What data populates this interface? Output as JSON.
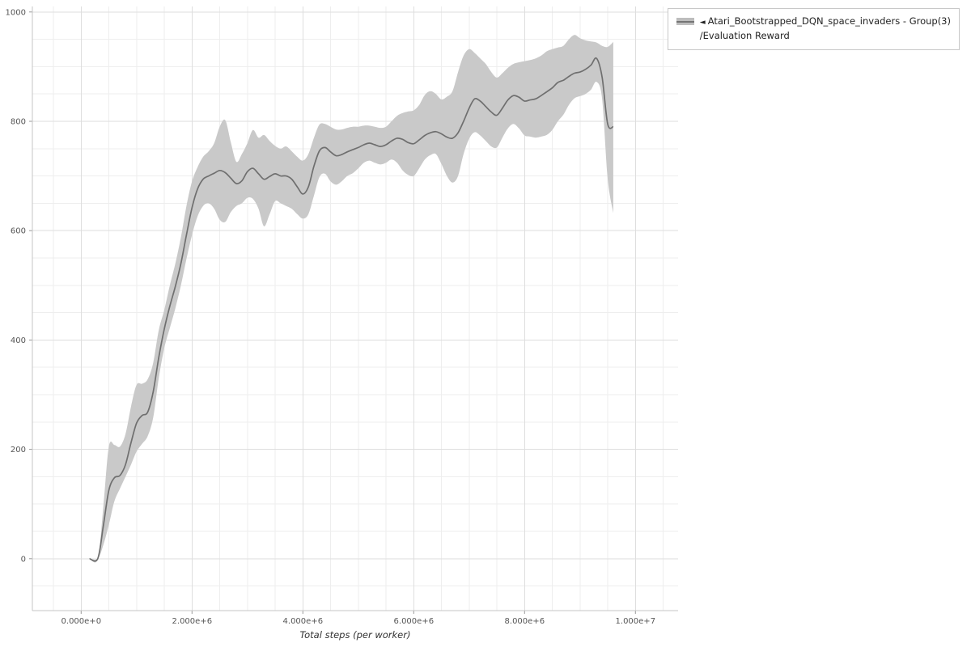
{
  "legend": {
    "collapse_icon": "◄",
    "line1": "Atari_Bootstrapped_DQN_space_invaders - Group(3)",
    "line2": "/Evaluation Reward"
  },
  "chart_data": {
    "type": "line",
    "title": "",
    "xlabel": "Total steps (per worker)",
    "ylabel": "",
    "x_unit": 1000000,
    "x_ticks": [
      {
        "value": 0,
        "label": "0.000e+0"
      },
      {
        "value": 2,
        "label": "2.000e+6"
      },
      {
        "value": 4,
        "label": "4.000e+6"
      },
      {
        "value": 6,
        "label": "6.000e+6"
      },
      {
        "value": 8,
        "label": "8.000e+6"
      },
      {
        "value": 10,
        "label": "1.000e+7"
      }
    ],
    "y_ticks": [
      {
        "value": 0,
        "label": "0"
      },
      {
        "value": 200,
        "label": "200"
      },
      {
        "value": 400,
        "label": "400"
      },
      {
        "value": 600,
        "label": "600"
      },
      {
        "value": 800,
        "label": "800"
      },
      {
        "value": 1000,
        "label": "1000"
      }
    ],
    "xlim": [
      -0.88,
      10.77
    ],
    "ylim": [
      -95,
      1010
    ],
    "x_minor_step": 0.5,
    "y_minor_step": 50,
    "grid": true,
    "legend_position": "top-right",
    "colors": {
      "line": "#6f6f6f",
      "band": "#c9c9c9",
      "grid_major": "#dedede",
      "grid_minor": "#eeeeee",
      "axis": "#c6c6c6",
      "tick_mark": "#999999"
    },
    "series": [
      {
        "name": "Atari_Bootstrapped_DQN_space_invaders - Group(3)/Evaluation Reward",
        "x": [
          0.15,
          0.3,
          0.4,
          0.5,
          0.6,
          0.7,
          0.8,
          0.9,
          1.0,
          1.1,
          1.2,
          1.3,
          1.4,
          1.5,
          1.6,
          1.7,
          1.8,
          1.9,
          2.0,
          2.1,
          2.2,
          2.3,
          2.4,
          2.5,
          2.6,
          2.7,
          2.8,
          2.9,
          3.0,
          3.1,
          3.2,
          3.3,
          3.4,
          3.5,
          3.6,
          3.7,
          3.8,
          3.9,
          4.0,
          4.1,
          4.2,
          4.3,
          4.4,
          4.5,
          4.6,
          4.7,
          4.8,
          4.9,
          5.0,
          5.1,
          5.2,
          5.3,
          5.4,
          5.5,
          5.6,
          5.7,
          5.8,
          5.9,
          6.0,
          6.1,
          6.2,
          6.3,
          6.4,
          6.5,
          6.6,
          6.7,
          6.8,
          6.9,
          7.0,
          7.1,
          7.2,
          7.3,
          7.4,
          7.5,
          7.6,
          7.7,
          7.8,
          7.9,
          8.0,
          8.1,
          8.2,
          8.3,
          8.4,
          8.5,
          8.6,
          8.7,
          8.8,
          8.9,
          9.0,
          9.1,
          9.2,
          9.3,
          9.4,
          9.5,
          9.6
        ],
        "mean": [
          0,
          0,
          60,
          125,
          148,
          152,
          172,
          212,
          248,
          262,
          268,
          305,
          368,
          420,
          462,
          498,
          540,
          592,
          642,
          676,
          694,
          700,
          705,
          710,
          706,
          696,
          686,
          691,
          708,
          714,
          704,
          694,
          699,
          704,
          700,
          700,
          694,
          680,
          667,
          680,
          718,
          746,
          752,
          744,
          737,
          739,
          744,
          748,
          752,
          757,
          760,
          757,
          754,
          757,
          764,
          769,
          767,
          761,
          759,
          766,
          774,
          779,
          781,
          777,
          771,
          769,
          779,
          800,
          824,
          841,
          837,
          827,
          817,
          811,
          824,
          839,
          847,
          844,
          837,
          839,
          841,
          847,
          854,
          861,
          871,
          875,
          882,
          888,
          890,
          895,
          903,
          915,
          880,
          795,
          790
        ],
        "lower": [
          0,
          0,
          25,
          62,
          105,
          128,
          150,
          172,
          196,
          210,
          224,
          258,
          330,
          385,
          422,
          458,
          500,
          548,
          592,
          626,
          645,
          650,
          640,
          620,
          616,
          634,
          645,
          650,
          660,
          658,
          640,
          608,
          630,
          654,
          650,
          645,
          640,
          630,
          622,
          630,
          664,
          698,
          704,
          690,
          684,
          690,
          700,
          705,
          714,
          724,
          728,
          724,
          721,
          724,
          730,
          724,
          710,
          702,
          700,
          714,
          730,
          738,
          740,
          722,
          700,
          688,
          700,
          740,
          768,
          780,
          774,
          764,
          754,
          752,
          770,
          787,
          795,
          787,
          774,
          772,
          770,
          772,
          775,
          784,
          800,
          812,
          830,
          842,
          846,
          850,
          858,
          872,
          840,
          695,
          632
        ],
        "upper": [
          0,
          0,
          95,
          205,
          208,
          205,
          228,
          278,
          318,
          320,
          328,
          358,
          418,
          455,
          500,
          540,
          588,
          645,
          690,
          716,
          735,
          745,
          760,
          790,
          802,
          762,
          726,
          740,
          760,
          784,
          770,
          775,
          764,
          755,
          750,
          754,
          745,
          735,
          728,
          740,
          770,
          794,
          795,
          790,
          785,
          785,
          788,
          790,
          790,
          792,
          792,
          790,
          788,
          790,
          800,
          810,
          815,
          818,
          820,
          830,
          848,
          855,
          850,
          840,
          845,
          855,
          890,
          920,
          932,
          925,
          915,
          905,
          890,
          880,
          888,
          898,
          905,
          908,
          910,
          912,
          915,
          920,
          928,
          932,
          935,
          938,
          950,
          958,
          952,
          948,
          946,
          944,
          938,
          936,
          945
        ]
      }
    ]
  }
}
